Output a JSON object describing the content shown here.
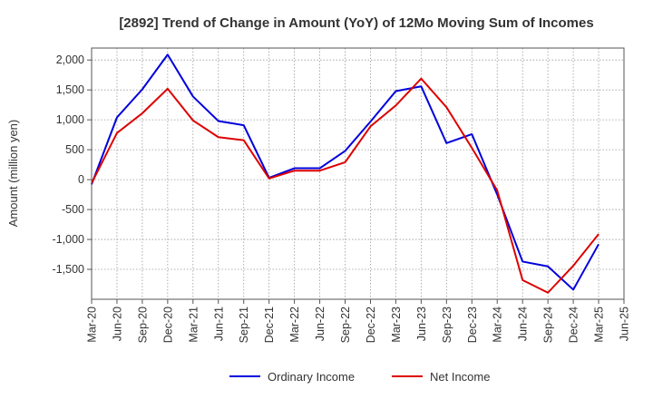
{
  "chart_data": {
    "type": "line",
    "title": "[2892]  Trend of Change in Amount (YoY) of 12Mo Moving Sum of Incomes",
    "xlabel": "",
    "ylabel": "Amount (million yen)",
    "categories": [
      "Mar-20",
      "Jun-20",
      "Sep-20",
      "Dec-20",
      "Mar-21",
      "Jun-21",
      "Sep-21",
      "Dec-21",
      "Mar-22",
      "Jun-22",
      "Sep-22",
      "Dec-22",
      "Mar-23",
      "Jun-23",
      "Sep-23",
      "Dec-23",
      "Mar-24",
      "Jun-24",
      "Sep-24",
      "Dec-24",
      "Mar-25",
      "Jun-25"
    ],
    "ylim": [
      -2000,
      2200
    ],
    "yticks": [
      -1500,
      -1000,
      -500,
      0,
      500,
      1000,
      1500,
      2000
    ],
    "ytick_labels": [
      "-1,500",
      "-1,000",
      "-500",
      "0",
      "500",
      "1,000",
      "1,500",
      "2,000"
    ],
    "grid": true,
    "legend_position": "bottom",
    "series": [
      {
        "name": "Ordinary Income",
        "color": "#0000dd",
        "values": [
          -80,
          1040,
          1510,
          2090,
          1390,
          980,
          910,
          30,
          190,
          190,
          480,
          970,
          1480,
          1560,
          610,
          760,
          -250,
          -1370,
          -1450,
          -1840,
          -1080,
          null
        ]
      },
      {
        "name": "Net Income",
        "color": "#dd0000",
        "values": [
          -60,
          780,
          1110,
          1520,
          990,
          710,
          660,
          20,
          150,
          150,
          290,
          890,
          1240,
          1690,
          1210,
          530,
          -180,
          -1680,
          -1890,
          -1440,
          -910,
          null
        ]
      }
    ]
  }
}
